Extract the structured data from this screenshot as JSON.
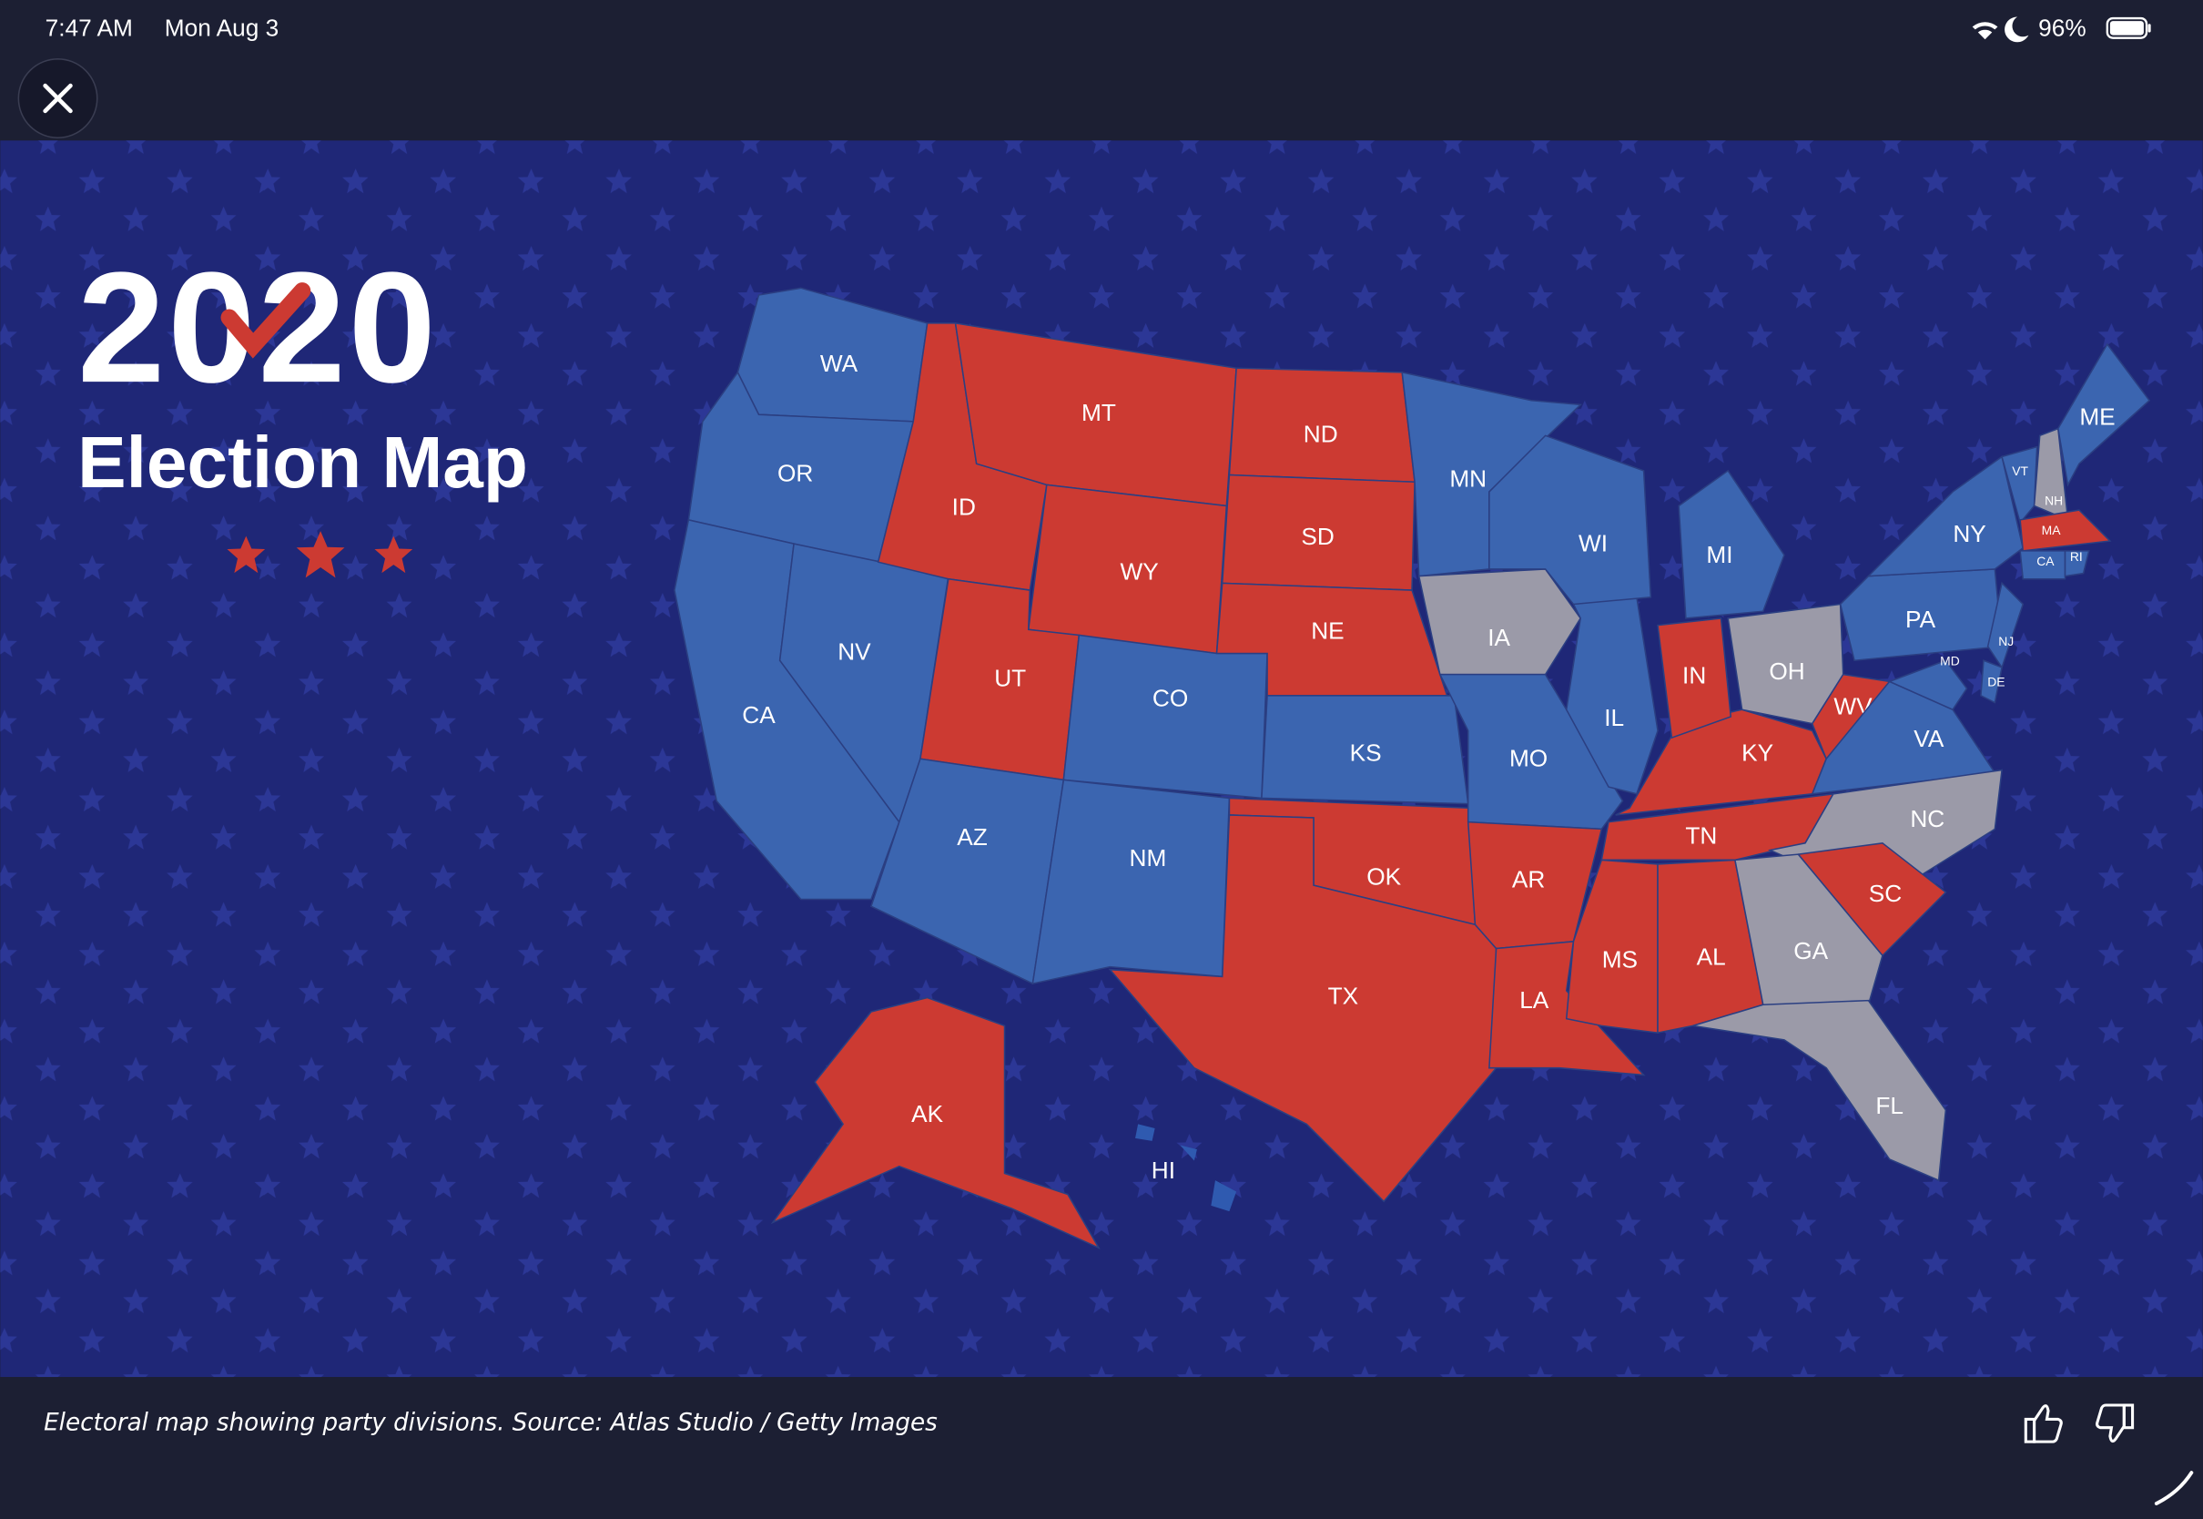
{
  "status_bar": {
    "time": "7:47 AM",
    "date": "Mon Aug 3",
    "battery": "96%"
  },
  "map": {
    "title": "2020",
    "subtitle": "Election Map",
    "states": [
      {
        "label": "WA",
        "color": "#3b65b0"
      },
      {
        "label": "OR",
        "color": "#3b65b0"
      },
      {
        "label": "CA",
        "color": "#3b65b0"
      },
      {
        "label": "NV",
        "color": "#3b65b0"
      },
      {
        "label": "ID",
        "color": "#cc3a32"
      },
      {
        "label": "MT",
        "color": "#cc3a32"
      },
      {
        "label": "WY",
        "color": "#cc3a32"
      },
      {
        "label": "UT",
        "color": "#cc3a32"
      },
      {
        "label": "CO",
        "color": "#3b65b0"
      },
      {
        "label": "AZ",
        "color": "#3b65b0"
      },
      {
        "label": "NM",
        "color": "#3b65b0"
      },
      {
        "label": "ND",
        "color": "#cc3a32"
      },
      {
        "label": "SD",
        "color": "#cc3a32"
      },
      {
        "label": "NE",
        "color": "#cc3a32"
      },
      {
        "label": "KS",
        "color": "#3b65b0"
      },
      {
        "label": "OK",
        "color": "#cc3a32"
      },
      {
        "label": "TX",
        "color": "#cc3a32"
      },
      {
        "label": "MN",
        "color": "#3b65b0"
      },
      {
        "label": "IA",
        "color": "#9b9aa8"
      },
      {
        "label": "MO",
        "color": "#3b65b0"
      },
      {
        "label": "AR",
        "color": "#cc3a32"
      },
      {
        "label": "LA",
        "color": "#cc3a32"
      },
      {
        "label": "MS",
        "color": "#cc3a32"
      },
      {
        "label": "AL",
        "color": "#cc3a32"
      },
      {
        "label": "TN",
        "color": "#cc3a32"
      },
      {
        "label": "KY",
        "color": "#cc3a32"
      },
      {
        "label": "IL",
        "color": "#3b65b0"
      },
      {
        "label": "IN",
        "color": "#cc3a32"
      },
      {
        "label": "WI",
        "color": "#3b65b0"
      },
      {
        "label": "MI",
        "color": "#3b65b0"
      },
      {
        "label": "OH",
        "color": "#9b9aa8"
      },
      {
        "label": "WV",
        "color": "#cc3a32"
      },
      {
        "label": "VA",
        "color": "#3b65b0"
      },
      {
        "label": "NC",
        "color": "#9b9aa8"
      },
      {
        "label": "SC",
        "color": "#cc3a32"
      },
      {
        "label": "GA",
        "color": "#9b9aa8"
      },
      {
        "label": "FL",
        "color": "#9b9aa8"
      },
      {
        "label": "PA",
        "color": "#3b65b0"
      },
      {
        "label": "NY",
        "color": "#3b65b0"
      },
      {
        "label": "NJ",
        "color": "#3b65b0"
      },
      {
        "label": "MD",
        "color": "#3b65b0"
      },
      {
        "label": "DE",
        "color": "#3b65b0"
      },
      {
        "label": "VT",
        "color": "#3b65b0"
      },
      {
        "label": "NH",
        "color": "#9b9aa8"
      },
      {
        "label": "ME",
        "color": "#3b65b0"
      },
      {
        "label": "MA",
        "color": "#cc3a32"
      },
      {
        "label": "CA",
        "color": "#3b65b0"
      },
      {
        "label": "RI",
        "color": "#3b65b0"
      },
      {
        "label": "AK",
        "color": "#cc3a32"
      },
      {
        "label": "HI",
        "color": "#2f5ab0"
      }
    ]
  },
  "caption": "Electoral map showing party divisions. Source: Atlas Studio / Getty Images"
}
